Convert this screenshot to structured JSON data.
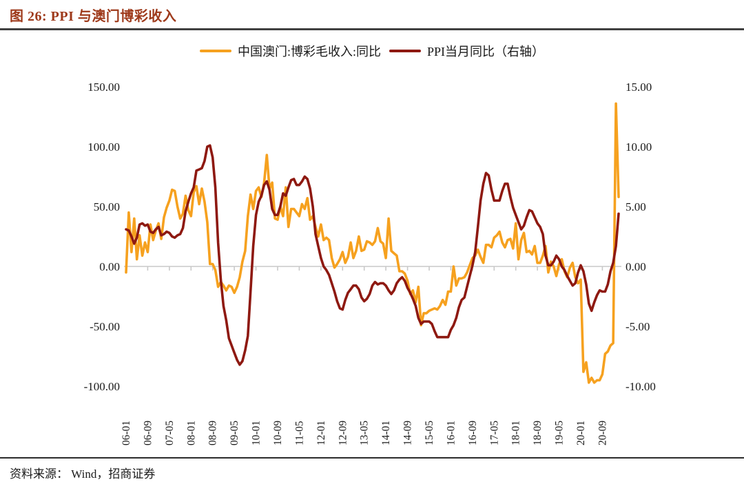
{
  "title": "图 26: PPI 与澳门博彩收入",
  "footer": {
    "source": "资料来源： Wind，招商证券"
  },
  "colors": {
    "title_text": "#9e3a1b",
    "macau_line": "#f6a11f",
    "ppi_line": "#8e1911",
    "axis_gray": "#c9c9c9",
    "rule_dark": "#404040"
  },
  "legend": [
    {
      "label": "中国澳门:博彩毛收入:同比",
      "color": "#f6a11f"
    },
    {
      "label": "PPI当月同比（右轴）",
      "color": "#8e1911"
    }
  ],
  "chart_data": {
    "type": "line",
    "frequency": "monthly",
    "x_start_month": "2006-01",
    "x_end_month": "2021-03",
    "x_tick_every": 8,
    "x_tick_labels": [
      "06-01",
      "06-09",
      "07-05",
      "08-01",
      "08-09",
      "09-05",
      "10-01",
      "10-09",
      "11-05",
      "12-01",
      "12-09",
      "13-05",
      "14-01",
      "14-09",
      "15-05",
      "16-01",
      "16-09",
      "17-05",
      "18-01",
      "18-09",
      "19-05",
      "20-01",
      "20-09"
    ],
    "left_axis": {
      "ticks": [
        "150.00",
        "100.00",
        "50.00",
        "0.00",
        "-50.00",
        "-100.00"
      ],
      "min": -100,
      "max": 150
    },
    "right_axis": {
      "ticks": [
        "15.00",
        "10.00",
        "5.00",
        "0.00",
        "-5.00",
        "-10.00"
      ],
      "min": -10,
      "max": 15
    },
    "grid": "zero-line-only",
    "legend_position": "top-center",
    "series": [
      {
        "name": "中国澳门:博彩毛收入:同比",
        "axis": "left",
        "color": "#f6a11f",
        "values": [
          -5,
          45,
          12,
          40,
          6,
          26,
          9,
          20,
          12,
          35,
          22,
          30,
          36,
          23,
          41,
          49,
          55,
          64,
          63,
          50,
          40,
          44,
          59,
          47,
          42,
          62,
          67,
          52,
          65,
          54,
          37,
          2,
          2,
          -3,
          -17,
          -13,
          -16,
          -20,
          -16,
          -17,
          -22,
          -17,
          -9,
          4,
          13,
          42,
          60,
          48,
          63,
          66,
          58,
          70,
          93,
          65,
          70,
          40,
          39,
          50,
          42,
          66,
          33,
          48,
          48,
          45,
          42,
          52,
          48,
          57,
          39,
          42,
          33,
          25,
          35,
          22,
          24,
          22,
          7,
          -1,
          2,
          6,
          12,
          3,
          8,
          20,
          7,
          13,
          25,
          13,
          14,
          21,
          20,
          18,
          21,
          32,
          21,
          19,
          7,
          40,
          13,
          11,
          9,
          -4,
          -4,
          -6,
          -12,
          -23,
          -20,
          -30,
          -17,
          -49,
          -39,
          -39,
          -37,
          -36,
          -35,
          -36,
          -33,
          -28,
          -32,
          -21,
          -21,
          0,
          -16,
          -10,
          -10,
          -9,
          -5,
          1,
          7,
          9,
          14,
          8,
          3,
          18,
          18,
          16,
          24,
          26,
          29,
          20,
          16,
          22,
          23,
          15,
          36,
          6,
          22,
          28,
          12,
          13,
          10,
          17,
          3,
          3,
          9,
          17,
          -5,
          4,
          0,
          -8,
          2,
          6,
          -4,
          -9,
          -1,
          3,
          -9,
          -14,
          -11,
          -88,
          -80,
          -97,
          -93,
          -97,
          -95,
          -95,
          -90,
          -73,
          -71,
          -66,
          -64,
          136,
          58
        ]
      },
      {
        "name": "PPI当月同比（右轴）",
        "axis": "right",
        "color": "#8e1911",
        "values": [
          3.1,
          3.0,
          2.5,
          1.9,
          2.4,
          3.5,
          3.6,
          3.4,
          3.5,
          2.9,
          2.8,
          3.1,
          3.3,
          2.6,
          2.7,
          2.9,
          2.8,
          2.5,
          2.4,
          2.6,
          2.7,
          3.2,
          4.6,
          5.4,
          6.1,
          6.6,
          8.0,
          8.1,
          8.2,
          8.8,
          10.0,
          10.1,
          9.1,
          6.6,
          2.0,
          -1.1,
          -3.3,
          -4.5,
          -6.0,
          -6.6,
          -7.2,
          -7.8,
          -8.2,
          -7.9,
          -7.0,
          -5.8,
          -2.1,
          1.7,
          4.3,
          5.4,
          5.9,
          6.8,
          7.1,
          6.4,
          4.8,
          4.3,
          4.3,
          5.0,
          6.1,
          5.9,
          6.6,
          7.2,
          7.3,
          6.8,
          6.8,
          7.1,
          7.5,
          7.3,
          6.5,
          5.0,
          2.7,
          1.7,
          0.7,
          0.0,
          -0.3,
          -0.7,
          -1.4,
          -2.1,
          -2.9,
          -3.5,
          -3.6,
          -2.8,
          -2.2,
          -1.9,
          -1.6,
          -1.6,
          -1.9,
          -2.6,
          -2.9,
          -2.7,
          -2.3,
          -1.6,
          -1.3,
          -1.5,
          -1.4,
          -1.4,
          -1.6,
          -2.0,
          -2.3,
          -2.0,
          -1.4,
          -1.1,
          -0.9,
          -1.2,
          -1.8,
          -2.2,
          -2.7,
          -3.3,
          -4.3,
          -4.8,
          -4.6,
          -4.6,
          -4.6,
          -4.8,
          -5.4,
          -5.9,
          -5.9,
          -5.9,
          -5.9,
          -5.9,
          -5.3,
          -4.9,
          -4.3,
          -3.4,
          -2.8,
          -2.6,
          -1.7,
          -0.8,
          0.1,
          1.2,
          3.3,
          5.5,
          6.9,
          7.8,
          7.6,
          6.4,
          5.5,
          5.5,
          5.5,
          6.3,
          6.9,
          6.9,
          5.8,
          4.9,
          4.3,
          3.7,
          3.1,
          3.4,
          4.1,
          4.7,
          4.6,
          4.1,
          3.6,
          3.3,
          2.7,
          0.9,
          0.1,
          0.1,
          0.4,
          0.9,
          0.6,
          0.0,
          -0.3,
          -0.8,
          -1.2,
          -1.6,
          -1.4,
          -0.5,
          0.1,
          -0.4,
          -1.5,
          -3.1,
          -3.7,
          -3.0,
          -2.4,
          -2.0,
          -2.1,
          -2.1,
          -1.5,
          -0.4,
          0.3,
          1.7,
          4.4
        ]
      }
    ]
  }
}
